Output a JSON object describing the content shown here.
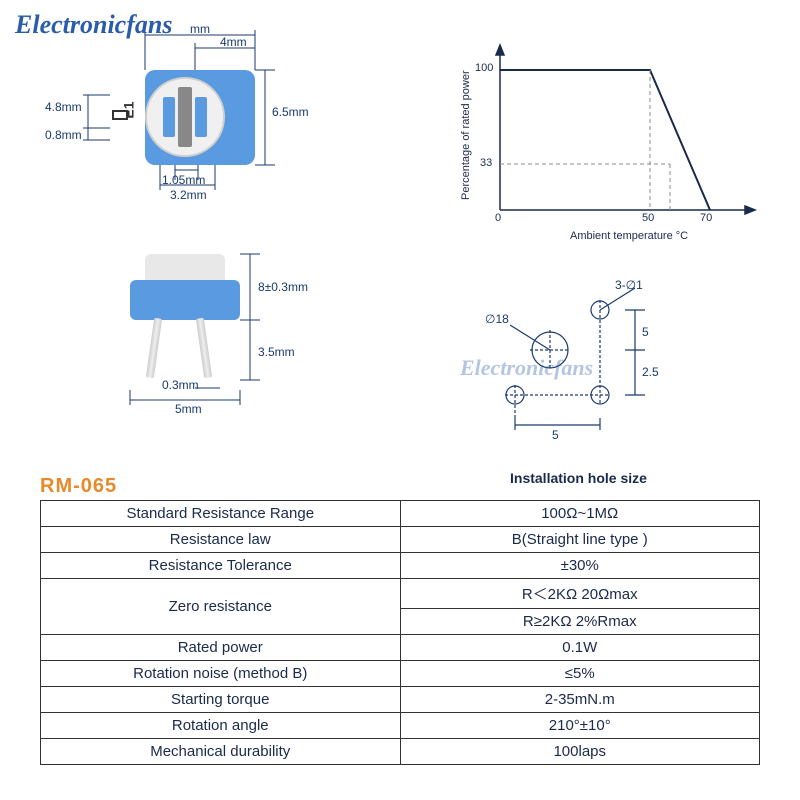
{
  "watermark": "Electronicfans",
  "model": "RM-065",
  "install_caption": "Installation hole size",
  "top_view": {
    "dims": {
      "width_top1": "mm",
      "width_top2": "4mm",
      "height_right": "6.5mm",
      "left_h1": "4.8mm",
      "left_h2": "0.8mm",
      "bottom_w1": "1.05mm",
      "bottom_w2": "3.2mm",
      "side_letter": "E1"
    }
  },
  "side_view": {
    "dims": {
      "h_body": "8±0.3mm",
      "h_leg": "3.5mm",
      "leg_thick": "0.3mm",
      "width": "5mm"
    }
  },
  "chart": {
    "ylabel": "Percentage of rated power",
    "xlabel": "Ambient temperature °C",
    "y_ticks": [
      "100",
      "33"
    ],
    "x_ticks": [
      "0",
      "50",
      "70"
    ],
    "line_color": "#1a2a4a",
    "axis_color": "#1a2a4a",
    "dash_color": "#888"
  },
  "install": {
    "labels": {
      "d1": "3-∅1",
      "d18": "∅18",
      "v1": "5",
      "v2": "2.5",
      "h1": "5"
    }
  },
  "table": {
    "rows": [
      [
        "Standard Resistance Range",
        "100Ω~1MΩ"
      ],
      [
        "Resistance law",
        "B(Straight line type )"
      ],
      [
        "Resistance Tolerance",
        "±30%"
      ],
      [
        "Zero resistance",
        "R＜2KΩ   20Ωmax\nR≥2KΩ   2%Rmax"
      ],
      [
        "Rated power",
        "0.1W"
      ],
      [
        "Rotation noise (method B)",
        "≤5%"
      ],
      [
        "Starting torque",
        "2-35mN.m"
      ],
      [
        "Rotation angle",
        "210°±10°"
      ],
      [
        "Mechanical durability",
        "100laps"
      ]
    ]
  },
  "colors": {
    "pot_blue": "#5a9ae0",
    "dim_text": "#1a3a6e",
    "model_orange": "#e88a2a",
    "watermark_blue": "#2a5caa"
  }
}
